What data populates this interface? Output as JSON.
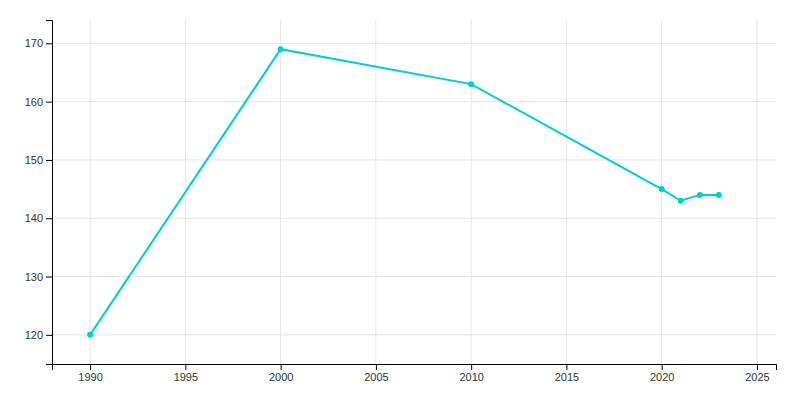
{
  "chart_data": {
    "type": "line",
    "x": [
      1990,
      2000,
      2010,
      2020,
      2021,
      2022,
      2023
    ],
    "values": [
      120,
      169,
      163,
      145,
      143,
      144,
      144
    ],
    "color": "#00CED1",
    "marker": "circle",
    "xlim": [
      1988,
      2026
    ],
    "ylim": [
      115,
      174
    ],
    "xticks": [
      1990,
      1995,
      2000,
      2005,
      2010,
      2015,
      2020,
      2025
    ],
    "yticks": [
      120,
      130,
      140,
      150,
      160,
      170
    ],
    "grid": true
  }
}
